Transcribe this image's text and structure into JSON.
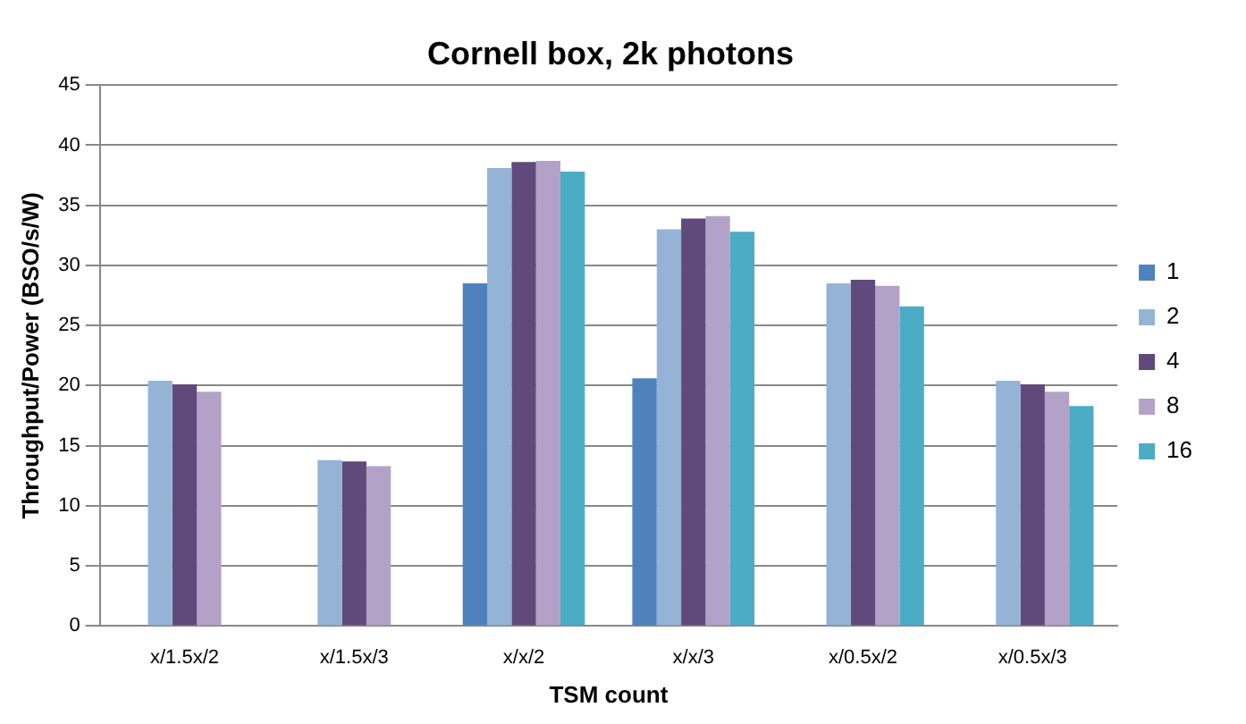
{
  "chart_data": {
    "type": "bar",
    "title": "Cornell box, 2k photons",
    "xlabel": "TSM count",
    "ylabel": "Throughput/Power (BSO/s/W)",
    "categories": [
      "x/1.5x/2",
      "x/1.5x/3",
      "x/x/2",
      "x/x/3",
      "x/0.5x/2",
      "x/0.5x/3"
    ],
    "series": [
      {
        "name": "1",
        "color": "#4f81bd",
        "values": [
          null,
          null,
          28.5,
          20.6,
          null,
          null
        ]
      },
      {
        "name": "2",
        "color": "#95b3d7",
        "values": [
          20.4,
          13.8,
          38.1,
          33.0,
          28.5,
          20.4
        ]
      },
      {
        "name": "4",
        "color": "#604a7b",
        "values": [
          20.1,
          13.7,
          38.6,
          33.9,
          28.8,
          20.1
        ]
      },
      {
        "name": "8",
        "color": "#b3a2c7",
        "values": [
          19.5,
          13.3,
          38.7,
          34.1,
          28.3,
          19.5
        ]
      },
      {
        "name": "16",
        "color": "#4bacc6",
        "values": [
          null,
          null,
          37.8,
          32.8,
          26.6,
          18.3
        ]
      }
    ],
    "ylim": [
      0,
      45
    ],
    "yticks": [
      0,
      5,
      10,
      15,
      20,
      25,
      30,
      35,
      40,
      45
    ],
    "grid": "y",
    "legend": "right"
  }
}
